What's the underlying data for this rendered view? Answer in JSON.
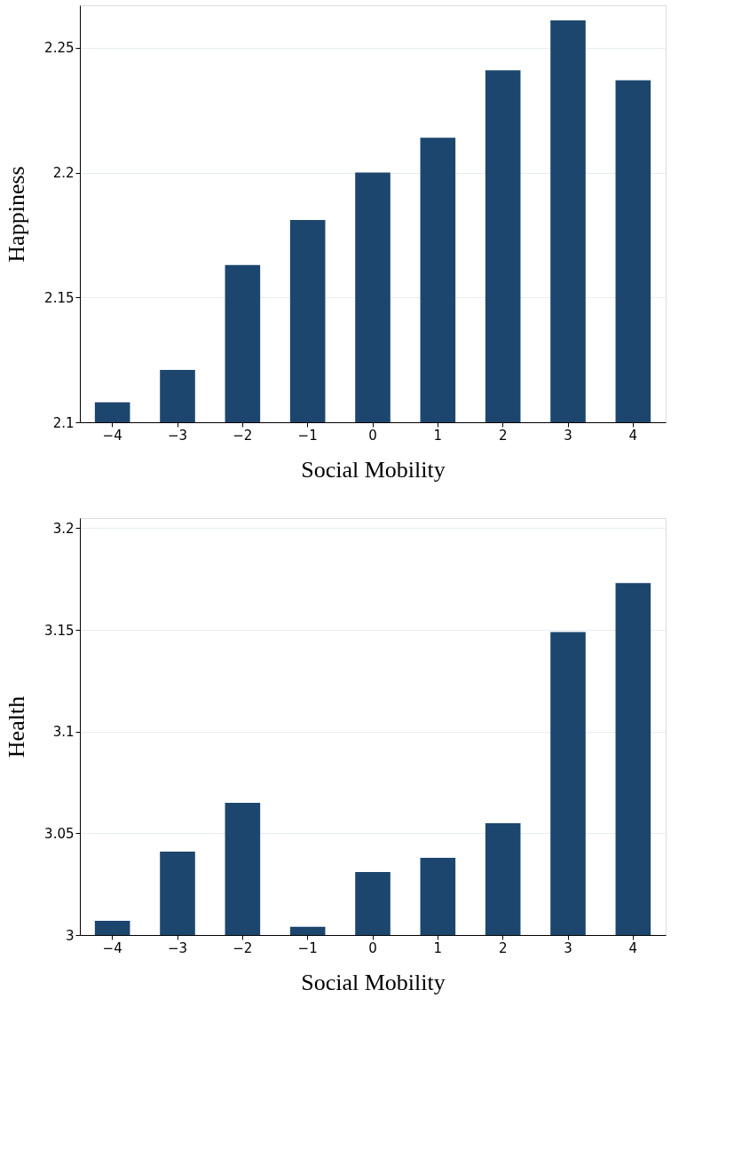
{
  "chart_data": [
    {
      "type": "bar",
      "xlabel": "Social Mobility",
      "ylabel": "Happiness",
      "categories": [
        "−4",
        "−3",
        "−2",
        "−1",
        "0",
        "1",
        "2",
        "3",
        "4"
      ],
      "series": [
        {
          "color": "#1c466e",
          "values": [
            2.108,
            2.121,
            2.163,
            2.181,
            2.2,
            2.214,
            2.241,
            2.261,
            2.237
          ]
        }
      ],
      "ylim": [
        2.1,
        2.267
      ],
      "yticks": [
        2.1,
        2.15,
        2.2,
        2.25
      ],
      "grid": "y",
      "legend": false
    },
    {
      "type": "bar",
      "xlabel": "Social Mobility",
      "ylabel": "Health",
      "categories": [
        "−4",
        "−3",
        "−2",
        "−1",
        "0",
        "1",
        "2",
        "3",
        "4"
      ],
      "series": [
        {
          "color": "#1c466e",
          "values": [
            3.007,
            3.041,
            3.065,
            3.004,
            3.031,
            3.038,
            3.055,
            3.149,
            3.173
          ]
        }
      ],
      "ylim": [
        3.0,
        3.205
      ],
      "yticks": [
        3.0,
        3.05,
        3.1,
        3.15,
        3.2
      ],
      "grid": "y",
      "legend": false
    }
  ]
}
